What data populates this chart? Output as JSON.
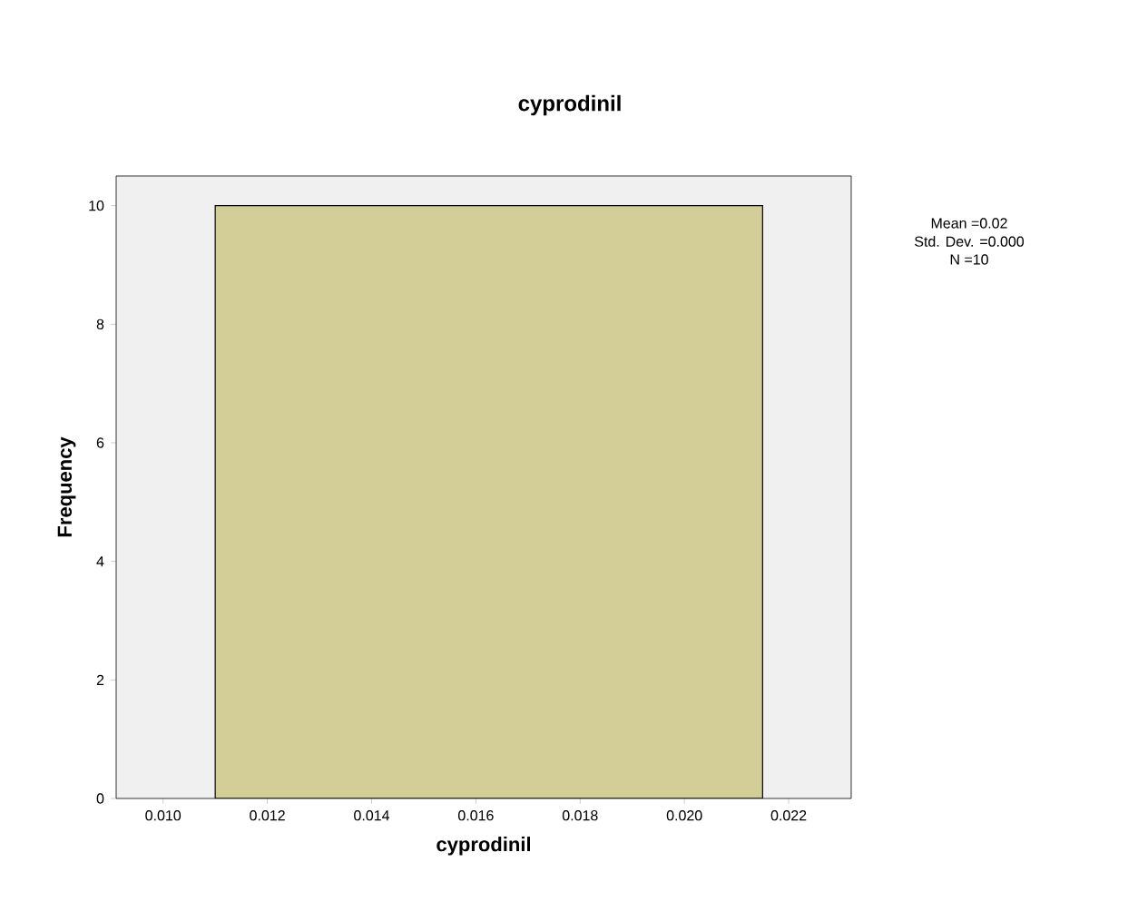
{
  "chart_data": {
    "type": "histogram",
    "title": "cyprodinil",
    "xlabel": "cyprodinil",
    "ylabel": "Frequency",
    "bins": [
      0.011,
      0.0215
    ],
    "values": [
      10
    ],
    "color": "#d3ce97",
    "xlim": [
      0.0091,
      0.0232
    ],
    "ylim": [
      0,
      10.5
    ],
    "xticks": [
      {
        "value": 0.01,
        "label": "0.010"
      },
      {
        "value": 0.012,
        "label": "0.012"
      },
      {
        "value": 0.014,
        "label": "0.014"
      },
      {
        "value": 0.016,
        "label": "0.016"
      },
      {
        "value": 0.018,
        "label": "0.018"
      },
      {
        "value": 0.02,
        "label": "0.020"
      },
      {
        "value": 0.022,
        "label": "0.022"
      }
    ],
    "yticks": [
      0,
      2,
      4,
      6,
      8,
      10
    ],
    "annotations": [
      "Mean =0.02",
      "Std. Dev. =0.000",
      "N =10"
    ],
    "grid": false
  }
}
